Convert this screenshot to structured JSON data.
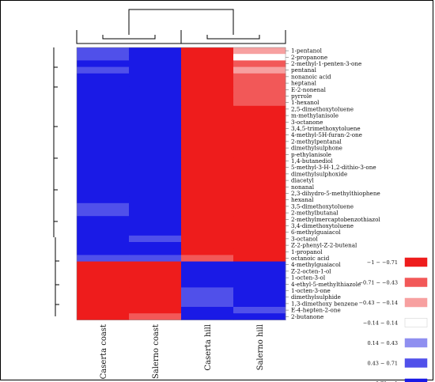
{
  "chart_data": {
    "type": "heatmap",
    "columns": [
      "Caserta coast",
      "Salerno coast",
      "Caserta hill",
      "Salerno hill"
    ],
    "rows": [
      "1-pentanol",
      "2-propanone",
      "2-methyl-1-penten-3-one",
      "pentanal",
      "nonanoic acid",
      "heptanal",
      "E-2-nonenal",
      "pyrrole",
      "1-hexanol",
      "2,5-dimethoxytoluene",
      "m-methylanisole",
      "3-octanone",
      "3,4,5-trimethoxytoluene",
      "4-methyl-5H-furan-2-one",
      "2-methylpentanal",
      "dimethylsulphone",
      "p-ethylanisole",
      "1,4-butanediol",
      "5-methyl-3-H-1,2-dithio-3-one",
      "dimethylsulphoxide",
      "diacetyl",
      "nonanal",
      "2,3-dihydro-5-methylthiophene",
      "hexanal",
      "3,5-dimethoxytoluene",
      "2-methylbutanal",
      "2-methylmercaptobenzothiazol",
      "3,4-dimethoxytoluene",
      "6-methylguaiacol",
      "3-octanol",
      "Z-2-phenyl-Z-2-butenal",
      "1-propanol",
      "octanoic acid",
      "4-methylguaiacol",
      "Z-2-octen-1-ol",
      "1-octen-3-ol",
      "4-ethyl-5-methylthiazole",
      "1-octen-3-one",
      "dimethylsulphide",
      "1,3-dimethoxy benzene",
      "E-4-hepten-2-one",
      "2-butanone"
    ],
    "values": [
      [
        0.5,
        0.9,
        -0.9,
        -0.4
      ],
      [
        0.5,
        0.9,
        -0.9,
        0.0
      ],
      [
        0.9,
        0.9,
        -0.9,
        -0.6
      ],
      [
        0.6,
        0.9,
        -0.9,
        -0.4
      ],
      [
        0.9,
        0.9,
        -0.9,
        -0.6
      ],
      [
        0.9,
        0.9,
        -0.9,
        -0.6
      ],
      [
        0.9,
        0.9,
        -0.9,
        -0.6
      ],
      [
        0.9,
        0.9,
        -0.9,
        -0.6
      ],
      [
        0.9,
        0.9,
        -0.9,
        -0.6
      ],
      [
        0.9,
        0.9,
        -0.9,
        -0.9
      ],
      [
        0.9,
        0.9,
        -0.9,
        -0.9
      ],
      [
        0.9,
        0.9,
        -0.9,
        -0.9
      ],
      [
        0.9,
        0.9,
        -0.9,
        -0.9
      ],
      [
        0.9,
        0.9,
        -0.9,
        -0.9
      ],
      [
        0.9,
        0.9,
        -0.9,
        -0.9
      ],
      [
        0.9,
        0.9,
        -0.9,
        -0.9
      ],
      [
        0.9,
        0.9,
        -0.9,
        -0.9
      ],
      [
        0.9,
        0.9,
        -0.9,
        -0.9
      ],
      [
        0.9,
        0.9,
        -0.9,
        -0.9
      ],
      [
        0.9,
        0.9,
        -0.9,
        -0.9
      ],
      [
        0.9,
        0.9,
        -0.9,
        -0.9
      ],
      [
        0.9,
        0.9,
        -0.9,
        -0.9
      ],
      [
        0.9,
        0.9,
        -0.9,
        -0.9
      ],
      [
        0.9,
        0.9,
        -0.9,
        -0.9
      ],
      [
        0.6,
        1.0,
        -0.9,
        -0.9
      ],
      [
        0.6,
        0.9,
        -0.9,
        -0.9
      ],
      [
        0.9,
        0.9,
        -0.9,
        -0.9
      ],
      [
        0.9,
        0.9,
        -0.9,
        -0.9
      ],
      [
        0.9,
        0.9,
        -0.9,
        -0.9
      ],
      [
        1.0,
        0.6,
        -0.9,
        -0.9
      ],
      [
        0.9,
        0.9,
        -0.9,
        -0.9
      ],
      [
        0.9,
        0.9,
        -0.9,
        -0.9
      ],
      [
        0.6,
        0.6,
        -0.5,
        -0.9
      ],
      [
        -0.9,
        -0.9,
        0.9,
        0.9
      ],
      [
        -0.9,
        -0.9,
        0.9,
        0.9
      ],
      [
        -0.9,
        -0.9,
        0.9,
        0.9
      ],
      [
        -0.9,
        -0.9,
        0.9,
        0.9
      ],
      [
        -0.9,
        -0.9,
        0.5,
        0.9
      ],
      [
        -0.9,
        -0.9,
        0.5,
        0.9
      ],
      [
        -0.9,
        -0.9,
        0.5,
        0.9
      ],
      [
        -0.9,
        -0.9,
        0.9,
        0.5
      ],
      [
        -0.9,
        -0.5,
        0.9,
        0.9
      ]
    ],
    "legend": [
      {
        "label": "−1 − −0.71",
        "color": "#ee1c1c"
      },
      {
        "label": "−0.71 − −0.43",
        "color": "#f25858"
      },
      {
        "label": "−0.43 − −0.14",
        "color": "#f7a0a0"
      },
      {
        "label": "−0.14 − 0.14",
        "color": "#ffffff"
      },
      {
        "label": "0.14 − 0.43",
        "color": "#8f8ff0"
      },
      {
        "label": "0.43 − 0.71",
        "color": "#5050ea"
      },
      {
        "label": "0.71 − 1",
        "color": "#1a1ae6"
      }
    ],
    "legend_placement": "right",
    "column_dendrogram": "top",
    "row_dendrogram": "left"
  }
}
